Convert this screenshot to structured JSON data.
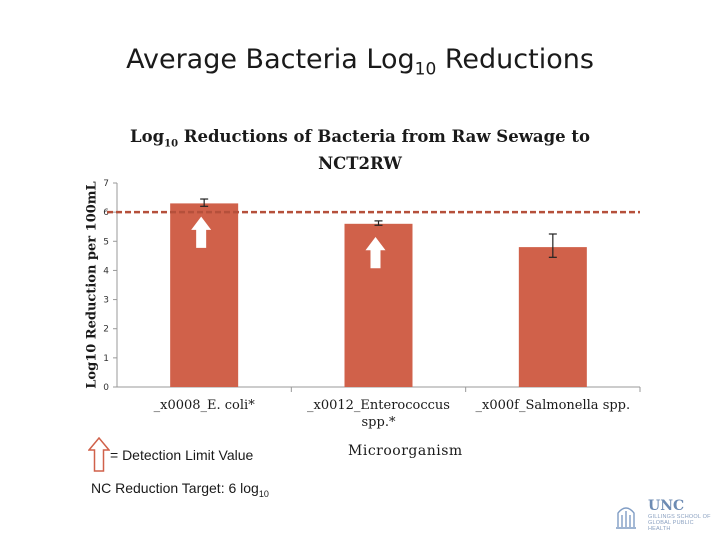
{
  "slide": {
    "title_main": "Average Bacteria Log",
    "title_sub": "10",
    "title_end": " Reductions"
  },
  "legend": {
    "text": "= Detection Limit Value",
    "icon": "up-arrow-icon"
  },
  "target_note": {
    "text": "NC Reduction Target: 6 log",
    "sub": "10"
  },
  "logo": {
    "name": "UNC",
    "line2": "GILLINGS SCHOOL OF GLOBAL PUBLIC HEALTH"
  },
  "colors": {
    "bar": "#d0614a",
    "target_line": "#b5503b",
    "arrow_fill": "#ffffff",
    "arrow_stroke": "#d0614a"
  },
  "chart_data": {
    "type": "bar",
    "title_main": "Log",
    "title_sub": "10",
    "title_end": " Reductions of Bacteria from Raw Sewage to NCT2RW",
    "xlabel": "Microorganism",
    "ylabel": "Log10 Reduction per 100mL",
    "ylim": [
      0,
      7
    ],
    "yticks": [
      "0",
      "1",
      "2",
      "3",
      "4",
      "5",
      "6",
      "7"
    ],
    "categories": [
      "_x0008_E. coli*",
      "_x0012_Enterococcus spp.*",
      "_x000f_Salmonella spp."
    ],
    "values": [
      6.3,
      5.6,
      4.8
    ],
    "error_low": [
      6.2,
      5.55,
      4.45
    ],
    "error_high": [
      6.45,
      5.7,
      5.25
    ],
    "detection_limit": [
      true,
      true,
      false
    ],
    "target_line": 6,
    "grid": false
  }
}
